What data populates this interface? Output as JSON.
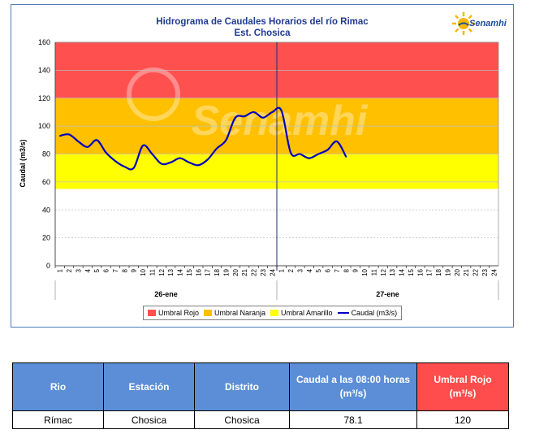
{
  "chart_data": {
    "type": "line",
    "title": "Hidrograma de Caudales Horarios del río Rimac",
    "subtitle": "Est. Chosica",
    "ylabel": "Caudal  (m3/s)",
    "ylim": [
      0,
      160
    ],
    "yticks": [
      0,
      20,
      40,
      60,
      80,
      100,
      120,
      140,
      160
    ],
    "x_day_groups": [
      {
        "label": "26-ene",
        "hours": [
          "1",
          "2",
          "3",
          "4",
          "5",
          "6",
          "7",
          "8",
          "9",
          "10",
          "11",
          "12",
          "13",
          "14",
          "15",
          "16",
          "17",
          "18",
          "19",
          "20",
          "21",
          "22",
          "23",
          "24"
        ]
      },
      {
        "label": "27-ene",
        "hours": [
          "1",
          "2",
          "3",
          "4",
          "5",
          "6",
          "7",
          "8",
          "9",
          "10",
          "11",
          "12",
          "13",
          "14",
          "15",
          "16",
          "17",
          "18",
          "19",
          "20",
          "21",
          "22",
          "23",
          "24"
        ]
      }
    ],
    "thresholds": [
      {
        "name": "Umbral Rojo",
        "from": 120,
        "to": 160,
        "color": "#ff5050"
      },
      {
        "name": "Umbral Naranja",
        "from": 80,
        "to": 120,
        "color": "#ffc000"
      },
      {
        "name": "Umbral Amarillo",
        "from": 55,
        "to": 80,
        "color": "#ffff00"
      }
    ],
    "series": [
      {
        "name": "Caudal (m3/s)",
        "color": "#0000c0",
        "values": [
          93,
          94,
          89,
          85,
          90,
          81,
          75,
          71,
          70,
          86,
          80,
          73,
          74,
          77,
          74,
          72,
          76,
          84,
          90,
          106,
          107,
          110,
          106,
          110,
          111,
          81,
          80,
          77,
          80,
          83,
          89,
          78
        ]
      }
    ],
    "legend_position": "bottom",
    "grid": true
  },
  "logo": {
    "name": "Senamhi",
    "watermark": "Senamhi"
  },
  "table": {
    "headers": [
      {
        "label": "Rio",
        "color": "#5b8ed6"
      },
      {
        "label": "Estación",
        "color": "#5b8ed6"
      },
      {
        "label": "Distrito",
        "color": "#5b8ed6"
      },
      {
        "label": "Caudal a las 08:00 horas (m³/s)",
        "color": "#5b8ed6"
      },
      {
        "label": "Umbral Rojo (m³/s)",
        "color": "#ff4d4d"
      }
    ],
    "rows": [
      [
        "Rímac",
        "Chosica",
        "Chosica",
        "78.1",
        "120"
      ]
    ]
  }
}
